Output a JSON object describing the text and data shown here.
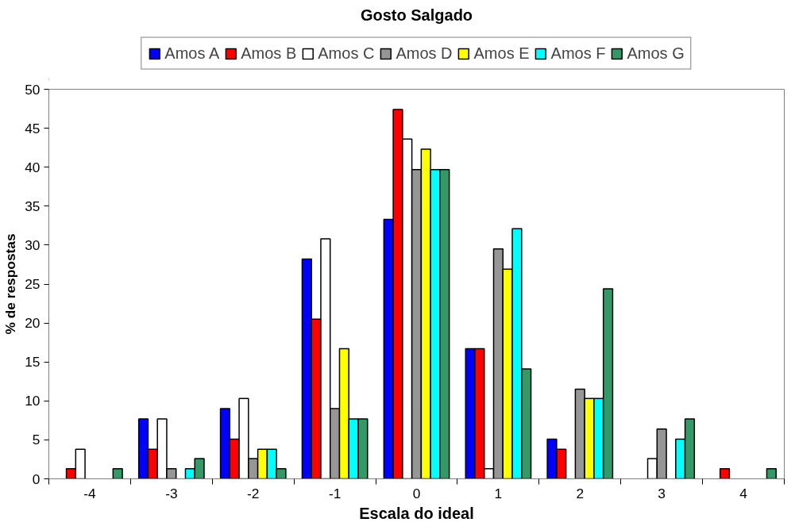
{
  "chart_data": {
    "type": "bar",
    "title": "Gosto Salgado",
    "xlabel": "Escala do ideal",
    "ylabel": "% de respostas",
    "categories": [
      "-4",
      "-3",
      "-2",
      "-1",
      "0",
      "1",
      "2",
      "3",
      "4"
    ],
    "series": [
      {
        "name": "Amos A",
        "color": "#0000ff",
        "values": [
          0,
          7.7,
          9.0,
          28.2,
          33.3,
          16.7,
          5.1,
          0,
          0
        ]
      },
      {
        "name": "Amos B",
        "color": "#ff0000",
        "values": [
          1.3,
          3.8,
          5.1,
          20.5,
          47.4,
          16.7,
          3.8,
          0,
          1.3
        ]
      },
      {
        "name": "Amos C",
        "color": "#ffffff",
        "values": [
          3.8,
          7.7,
          10.3,
          30.8,
          43.6,
          1.3,
          0,
          2.6,
          0
        ]
      },
      {
        "name": "Amos D",
        "color": "#969696",
        "values": [
          0,
          1.3,
          2.6,
          9.0,
          39.7,
          29.5,
          11.5,
          6.4,
          0
        ]
      },
      {
        "name": "Amos E",
        "color": "#ffff00",
        "values": [
          0,
          0,
          3.8,
          16.7,
          42.3,
          26.9,
          10.3,
          0,
          0
        ]
      },
      {
        "name": "Amos F",
        "color": "#00ffff",
        "values": [
          0,
          1.3,
          3.8,
          7.7,
          39.7,
          32.1,
          10.3,
          5.1,
          0
        ]
      },
      {
        "name": "Amos G",
        "color": "#339966",
        "values": [
          1.3,
          2.6,
          1.3,
          7.7,
          39.7,
          14.1,
          24.4,
          7.7,
          1.3
        ]
      }
    ],
    "ylim": [
      0,
      50
    ],
    "yticks": [
      0,
      5,
      10,
      15,
      20,
      25,
      30,
      35,
      40,
      45,
      50
    ],
    "grid": false,
    "legend": "top"
  }
}
